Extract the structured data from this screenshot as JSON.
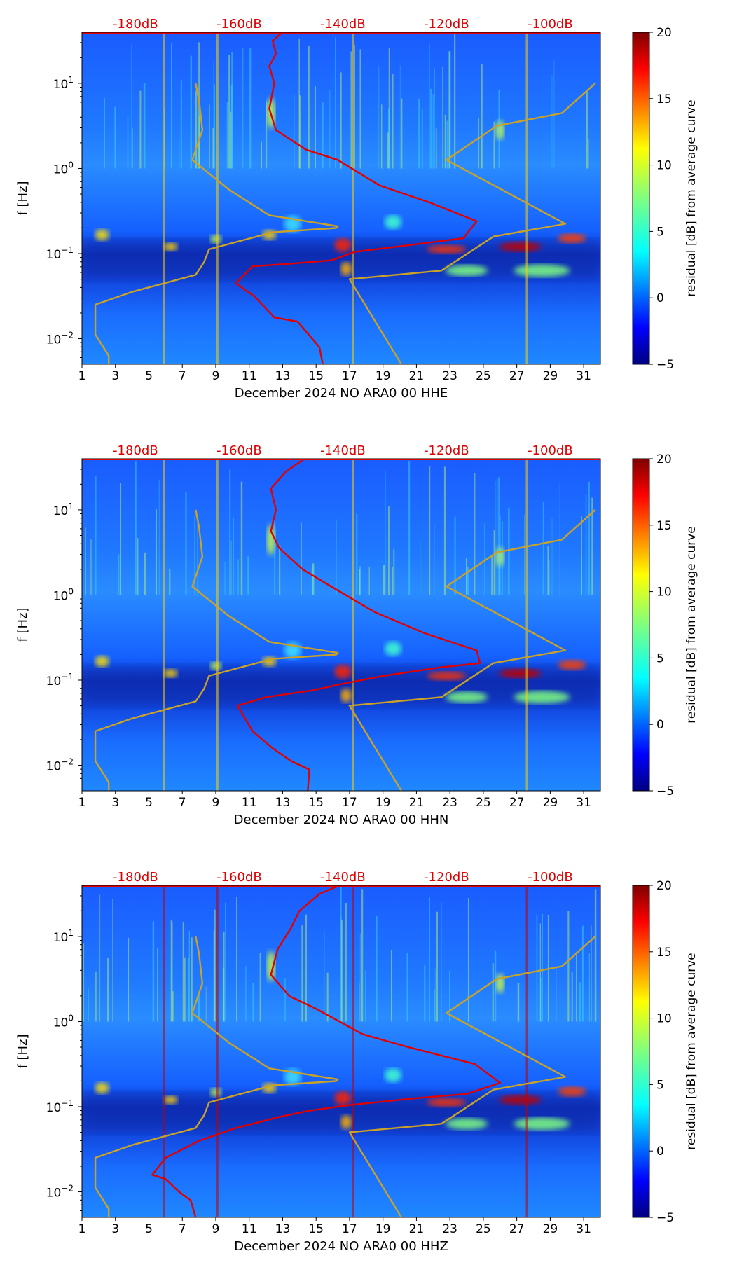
{
  "figure": {
    "colors": {
      "noise_model": "#e00000",
      "reference_model": "#c9a227",
      "top_axis_text": "#e00000",
      "background": "#ffffff"
    },
    "colormap": "jet"
  },
  "chart_data": [
    {
      "type": "heatmap",
      "title": "",
      "xlabel": "December 2024 NO ARA0 00 HHE",
      "ylabel": "f [Hz]",
      "xlim": [
        1,
        32
      ],
      "ylim_log10": [
        -2.3,
        1.6
      ],
      "x_ticks": [
        "1",
        "3",
        "5",
        "7",
        "9",
        "11",
        "13",
        "15",
        "17",
        "19",
        "21",
        "23",
        "25",
        "27",
        "29",
        "31"
      ],
      "y_ticks": [
        {
          "value": -2,
          "base": "10",
          "exp": "−2"
        },
        {
          "value": -1,
          "base": "10",
          "exp": "−1"
        },
        {
          "value": 0,
          "base": "10",
          "exp": "0"
        },
        {
          "value": 1,
          "base": "10",
          "exp": "1"
        }
      ],
      "top_axis_label_values_x": [
        4.2,
        10.4,
        16.6,
        22.8,
        29.0
      ],
      "top_axis_labels": [
        "-180dB",
        "-160dB",
        "-140dB",
        "-120dB",
        "-100dB"
      ],
      "colorbar": {
        "label": "residual [dB] from average curve",
        "range": [
          -5,
          20
        ],
        "ticks": [
          "−5",
          "0",
          "5",
          "10",
          "15",
          "20"
        ],
        "tick_values": [
          -5,
          0,
          5,
          10,
          15,
          20
        ]
      },
      "series": [
        {
          "name": "noise_level_curve",
          "color": "#e00000",
          "points": [
            [
              15.4,
              -2.3
            ],
            [
              15.2,
              -2.1
            ],
            [
              13.9,
              -1.8
            ],
            [
              12.5,
              -1.75
            ],
            [
              11.3,
              -1.5
            ],
            [
              10.2,
              -1.35
            ],
            [
              11.2,
              -1.15
            ],
            [
              13.4,
              -1.12
            ],
            [
              15.9,
              -1.08
            ],
            [
              17.3,
              -0.98
            ],
            [
              20.6,
              -0.9
            ],
            [
              23.8,
              -0.82
            ],
            [
              24.6,
              -0.62
            ],
            [
              21.8,
              -0.4
            ],
            [
              18.8,
              -0.2
            ],
            [
              16.3,
              0.1
            ],
            [
              14.4,
              0.22
            ],
            [
              12.6,
              0.45
            ],
            [
              12.2,
              0.7
            ],
            [
              12.5,
              1.0
            ],
            [
              12.2,
              1.2
            ],
            [
              12.6,
              1.35
            ],
            [
              12.4,
              1.5
            ],
            [
              13.0,
              1.6
            ]
          ]
        },
        {
          "name": "reference_model",
          "color": "#c9a227",
          "points": [
            [
              2.6,
              -2.3
            ],
            [
              2.6,
              -2.2
            ],
            [
              1.8,
              -1.95
            ],
            [
              1.8,
              -1.6
            ],
            [
              4.0,
              -1.45
            ],
            [
              7.8,
              -1.25
            ],
            [
              8.3,
              -1.1
            ],
            [
              8.6,
              -0.95
            ],
            [
              12.4,
              -0.75
            ],
            [
              16.2,
              -0.7
            ],
            [
              16.3,
              -0.68
            ],
            [
              12.2,
              -0.55
            ],
            [
              9.8,
              -0.25
            ],
            [
              7.6,
              0.1
            ],
            [
              8.2,
              0.45
            ],
            [
              8.0,
              0.8
            ],
            [
              7.8,
              1.0
            ]
          ]
        },
        {
          "name": "reference_model_high",
          "color": "#c9a227",
          "points": [
            [
              20.1,
              -2.3
            ],
            [
              17.0,
              -1.3
            ],
            [
              22.5,
              -1.2
            ],
            [
              25.6,
              -0.8
            ],
            [
              29.9,
              -0.65
            ],
            [
              22.8,
              0.1
            ],
            [
              25.8,
              0.5
            ],
            [
              29.7,
              0.65
            ],
            [
              31.7,
              1.0
            ]
          ]
        }
      ]
    },
    {
      "type": "heatmap",
      "title": "",
      "xlabel": "December 2024 NO ARA0 00 HHN",
      "ylabel": "f [Hz]",
      "xlim": [
        1,
        32
      ],
      "ylim_log10": [
        -2.3,
        1.6
      ],
      "x_ticks": [
        "1",
        "3",
        "5",
        "7",
        "9",
        "11",
        "13",
        "15",
        "17",
        "19",
        "21",
        "23",
        "25",
        "27",
        "29",
        "31"
      ],
      "y_ticks": [
        {
          "value": -2,
          "base": "10",
          "exp": "−2"
        },
        {
          "value": -1,
          "base": "10",
          "exp": "−1"
        },
        {
          "value": 0,
          "base": "10",
          "exp": "0"
        },
        {
          "value": 1,
          "base": "10",
          "exp": "1"
        }
      ],
      "top_axis_label_values_x": [
        4.2,
        10.4,
        16.6,
        22.8,
        29.0
      ],
      "top_axis_labels": [
        "-180dB",
        "-160dB",
        "-140dB",
        "-120dB",
        "-100dB"
      ],
      "colorbar": {
        "label": "residual [dB] from average curve",
        "range": [
          -5,
          20
        ],
        "ticks": [
          "−5",
          "0",
          "5",
          "10",
          "15",
          "20"
        ],
        "tick_values": [
          -5,
          0,
          5,
          10,
          15,
          20
        ]
      },
      "series": [
        {
          "name": "noise_level_curve",
          "color": "#e00000",
          "points": [
            [
              14.5,
              -2.3
            ],
            [
              14.6,
              -2.05
            ],
            [
              13.5,
              -1.95
            ],
            [
              12.4,
              -1.8
            ],
            [
              11.2,
              -1.6
            ],
            [
              10.3,
              -1.3
            ],
            [
              12.0,
              -1.2
            ],
            [
              14.8,
              -1.12
            ],
            [
              16.4,
              -1.05
            ],
            [
              19.0,
              -0.95
            ],
            [
              22.4,
              -0.85
            ],
            [
              24.8,
              -0.8
            ],
            [
              24.6,
              -0.65
            ],
            [
              21.5,
              -0.45
            ],
            [
              18.5,
              -0.2
            ],
            [
              15.9,
              0.1
            ],
            [
              14.2,
              0.3
            ],
            [
              12.8,
              0.55
            ],
            [
              12.3,
              0.75
            ],
            [
              12.6,
              1.0
            ],
            [
              12.3,
              1.25
            ],
            [
              13.2,
              1.45
            ],
            [
              14.3,
              1.6
            ]
          ]
        },
        {
          "name": "reference_model",
          "color": "#c9a227",
          "points": [
            [
              2.6,
              -2.3
            ],
            [
              2.6,
              -2.2
            ],
            [
              1.8,
              -1.95
            ],
            [
              1.8,
              -1.6
            ],
            [
              4.0,
              -1.45
            ],
            [
              7.8,
              -1.25
            ],
            [
              8.3,
              -1.1
            ],
            [
              8.6,
              -0.95
            ],
            [
              12.4,
              -0.75
            ],
            [
              16.2,
              -0.7
            ],
            [
              16.3,
              -0.68
            ],
            [
              12.2,
              -0.55
            ],
            [
              9.8,
              -0.25
            ],
            [
              7.6,
              0.1
            ],
            [
              8.2,
              0.45
            ],
            [
              8.0,
              0.8
            ],
            [
              7.8,
              1.0
            ]
          ]
        },
        {
          "name": "reference_model_high",
          "color": "#c9a227",
          "points": [
            [
              20.1,
              -2.3
            ],
            [
              17.0,
              -1.3
            ],
            [
              22.5,
              -1.2
            ],
            [
              25.6,
              -0.8
            ],
            [
              29.9,
              -0.65
            ],
            [
              22.8,
              0.1
            ],
            [
              25.8,
              0.5
            ],
            [
              29.7,
              0.65
            ],
            [
              31.7,
              1.0
            ]
          ]
        }
      ]
    },
    {
      "type": "heatmap",
      "title": "",
      "xlabel": "December 2024 NO ARA0 00 HHZ",
      "ylabel": "f [Hz]",
      "xlim": [
        1,
        32
      ],
      "ylim_log10": [
        -2.3,
        1.6
      ],
      "x_ticks": [
        "1",
        "3",
        "5",
        "7",
        "9",
        "11",
        "13",
        "15",
        "17",
        "19",
        "21",
        "23",
        "25",
        "27",
        "29",
        "31"
      ],
      "y_ticks": [
        {
          "value": -2,
          "base": "10",
          "exp": "−2"
        },
        {
          "value": -1,
          "base": "10",
          "exp": "−1"
        },
        {
          "value": 0,
          "base": "10",
          "exp": "0"
        },
        {
          "value": 1,
          "base": "10",
          "exp": "1"
        }
      ],
      "top_axis_label_values_x": [
        4.2,
        10.4,
        16.6,
        22.8,
        29.0
      ],
      "top_axis_labels": [
        "-180dB",
        "-160dB",
        "-140dB",
        "-120dB",
        "-100dB"
      ],
      "colorbar": {
        "label": "residual [dB] from average curve",
        "range": [
          -5,
          20
        ],
        "ticks": [
          "−5",
          "0",
          "5",
          "10",
          "15",
          "20"
        ],
        "tick_values": [
          -5,
          0,
          5,
          10,
          15,
          20
        ]
      },
      "series": [
        {
          "name": "noise_level_curve",
          "color": "#e00000",
          "points": [
            [
              7.8,
              -2.3
            ],
            [
              7.5,
              -2.1
            ],
            [
              6.8,
              -2.0
            ],
            [
              6.0,
              -1.85
            ],
            [
              5.2,
              -1.8
            ],
            [
              6.0,
              -1.6
            ],
            [
              8.0,
              -1.4
            ],
            [
              10.2,
              -1.25
            ],
            [
              12.8,
              -1.12
            ],
            [
              14.5,
              -1.05
            ],
            [
              17.0,
              -0.98
            ],
            [
              21.0,
              -0.9
            ],
            [
              24.0,
              -0.85
            ],
            [
              26.0,
              -0.72
            ],
            [
              24.5,
              -0.5
            ],
            [
              20.5,
              -0.3
            ],
            [
              17.8,
              -0.15
            ],
            [
              15.0,
              0.15
            ],
            [
              13.4,
              0.3
            ],
            [
              12.3,
              0.55
            ],
            [
              12.7,
              0.85
            ],
            [
              13.5,
              1.1
            ],
            [
              14.0,
              1.3
            ],
            [
              15.2,
              1.5
            ],
            [
              16.4,
              1.6
            ]
          ]
        },
        {
          "name": "reference_model",
          "color": "#c9a227",
          "points": [
            [
              2.6,
              -2.3
            ],
            [
              2.6,
              -2.2
            ],
            [
              1.8,
              -1.95
            ],
            [
              1.8,
              -1.6
            ],
            [
              4.0,
              -1.45
            ],
            [
              7.8,
              -1.25
            ],
            [
              8.3,
              -1.1
            ],
            [
              8.6,
              -0.95
            ],
            [
              12.4,
              -0.75
            ],
            [
              16.2,
              -0.7
            ],
            [
              16.3,
              -0.68
            ],
            [
              12.2,
              -0.55
            ],
            [
              9.8,
              -0.25
            ],
            [
              7.6,
              0.1
            ],
            [
              8.2,
              0.45
            ],
            [
              8.0,
              0.8
            ],
            [
              7.8,
              1.0
            ]
          ]
        },
        {
          "name": "reference_model_high",
          "color": "#c9a227",
          "points": [
            [
              20.1,
              -2.3
            ],
            [
              17.0,
              -1.3
            ],
            [
              22.5,
              -1.2
            ],
            [
              25.6,
              -0.8
            ],
            [
              29.9,
              -0.65
            ],
            [
              22.8,
              0.1
            ],
            [
              25.8,
              0.5
            ],
            [
              29.7,
              0.65
            ],
            [
              31.7,
              1.0
            ]
          ]
        }
      ]
    }
  ]
}
